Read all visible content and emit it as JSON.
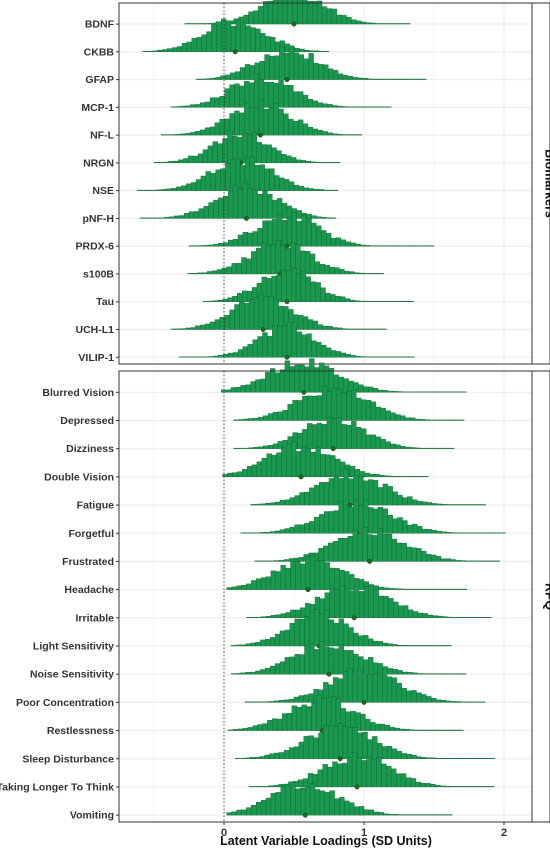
{
  "chart_data": {
    "type": "ridgeline-histogram",
    "xlabel": "Latent Variable Loadings (SD Units)",
    "xlim": [
      -0.75,
      2.2
    ],
    "xticks": [
      0,
      1,
      2
    ],
    "reference_line_x": 0,
    "grid": true,
    "colors": {
      "fill": "#1a9850",
      "stroke": "#0b5a2a",
      "point": "#1f6b1f"
    },
    "panels": [
      {
        "name": "Biomarkers",
        "items": [
          {
            "label": "BDNF",
            "mean": 0.5,
            "sd": 0.22,
            "min": -0.28,
            "max": 1.33
          },
          {
            "label": "CKBB",
            "mean": 0.08,
            "sd": 0.22,
            "min": -0.58,
            "max": 0.75
          },
          {
            "label": "GFAP",
            "mean": 0.45,
            "sd": 0.22,
            "min": -0.2,
            "max": 1.42
          },
          {
            "label": "MCP-1",
            "mean": 0.27,
            "sd": 0.22,
            "min": -0.38,
            "max": 1.18
          },
          {
            "label": "NF-L",
            "mean": 0.26,
            "sd": 0.22,
            "min": -0.45,
            "max": 0.97
          },
          {
            "label": "NRGN",
            "mean": 0.12,
            "sd": 0.2,
            "min": -0.5,
            "max": 0.83
          },
          {
            "label": "NSE",
            "mean": 0.13,
            "sd": 0.22,
            "min": -0.62,
            "max": 0.79
          },
          {
            "label": "pNF-H",
            "mean": 0.16,
            "sd": 0.22,
            "min": -0.6,
            "max": 0.8
          },
          {
            "label": "PRDX-6",
            "mean": 0.45,
            "sd": 0.22,
            "min": -0.25,
            "max": 1.48
          },
          {
            "label": "s100B",
            "mean": 0.4,
            "sd": 0.22,
            "min": -0.26,
            "max": 1.12
          },
          {
            "label": "Tau",
            "mean": 0.45,
            "sd": 0.2,
            "min": -0.15,
            "max": 1.35
          },
          {
            "label": "UCH-L1",
            "mean": 0.28,
            "sd": 0.22,
            "min": -0.38,
            "max": 1.13
          },
          {
            "label": "VILIP-1",
            "mean": 0.45,
            "sd": 0.2,
            "min": -0.32,
            "max": 1.34
          }
        ]
      },
      {
        "name": "RPQ",
        "items": [
          {
            "label": "Blurred Vision",
            "mean": 0.57,
            "sd": 0.25,
            "min": -0.02,
            "max": 1.7
          },
          {
            "label": "Depressed",
            "mean": 0.78,
            "sd": 0.25,
            "min": 0.07,
            "max": 1.7
          },
          {
            "label": "Dizziness",
            "mean": 0.78,
            "sd": 0.22,
            "min": 0.07,
            "max": 1.63
          },
          {
            "label": "Double Vision",
            "mean": 0.55,
            "sd": 0.24,
            "min": -0.01,
            "max": 1.45
          },
          {
            "label": "Fatigue",
            "mean": 0.9,
            "sd": 0.25,
            "min": 0.19,
            "max": 1.85
          },
          {
            "label": "Forgetful",
            "mean": 0.95,
            "sd": 0.25,
            "min": 0.12,
            "max": 2.0
          },
          {
            "label": "Frustrated",
            "mean": 1.04,
            "sd": 0.25,
            "min": 0.22,
            "max": 1.97
          },
          {
            "label": "Headache",
            "mean": 0.6,
            "sd": 0.24,
            "min": 0.02,
            "max": 1.72
          },
          {
            "label": "Irritable",
            "mean": 0.93,
            "sd": 0.25,
            "min": 0.16,
            "max": 1.9
          },
          {
            "label": "Light Sensitivity",
            "mean": 0.68,
            "sd": 0.22,
            "min": 0.05,
            "max": 1.6
          },
          {
            "label": "Noise Sensitivity",
            "mean": 0.75,
            "sd": 0.24,
            "min": 0.05,
            "max": 1.72
          },
          {
            "label": "Poor Concentration",
            "mean": 1.0,
            "sd": 0.25,
            "min": 0.15,
            "max": 1.85
          },
          {
            "label": "Restlessness",
            "mean": 0.7,
            "sd": 0.24,
            "min": 0.03,
            "max": 1.7
          },
          {
            "label": "Sleep Disturbance",
            "mean": 0.83,
            "sd": 0.25,
            "min": 0.08,
            "max": 1.92
          },
          {
            "label": "Taking Longer To Think",
            "mean": 0.95,
            "sd": 0.24,
            "min": 0.18,
            "max": 1.9
          },
          {
            "label": "Vomiting",
            "mean": 0.58,
            "sd": 0.24,
            "min": 0.02,
            "max": 1.62
          }
        ]
      }
    ]
  }
}
